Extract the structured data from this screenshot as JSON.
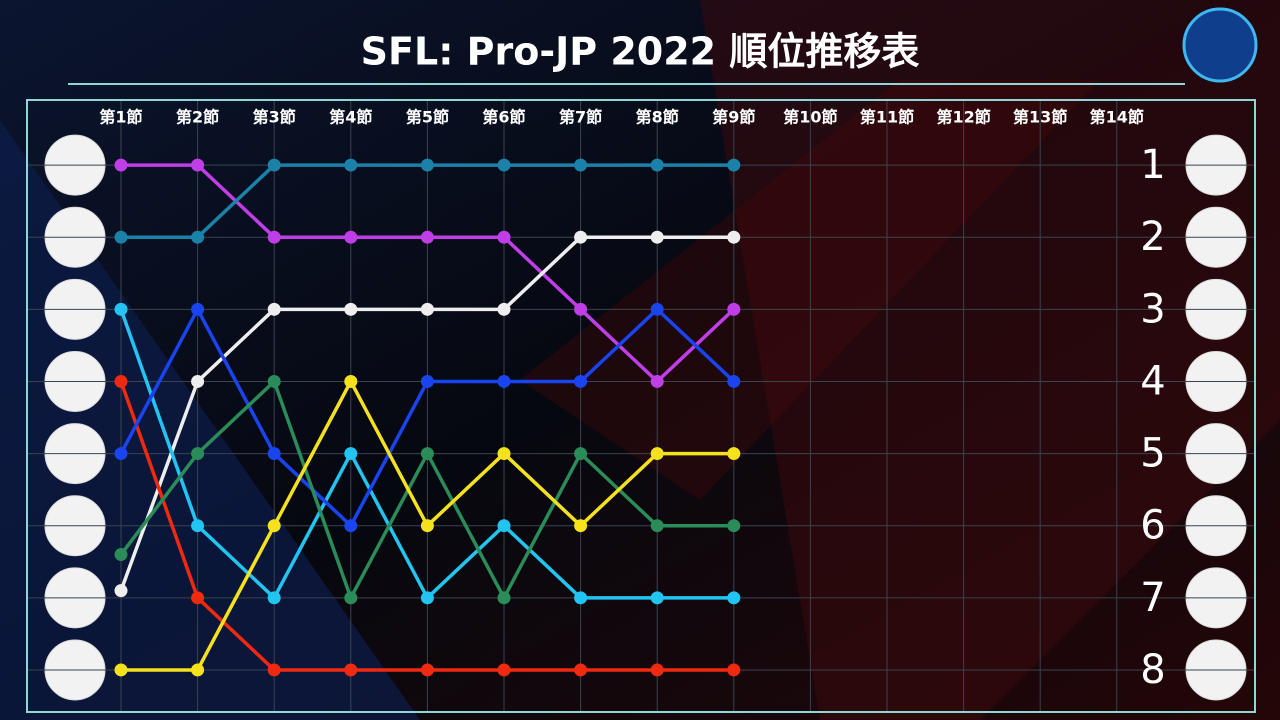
{
  "chart_data": {
    "type": "line",
    "title": "SFL: Pro-JP 2022  順位推移表",
    "categories": [
      "第1節",
      "第2節",
      "第3節",
      "第4節",
      "第5節",
      "第6節",
      "第7節",
      "第8節",
      "第9節",
      "第10節",
      "第11節",
      "第12節",
      "第13節",
      "第14節"
    ],
    "series": [
      {
        "color": "#c03ee8",
        "values": [
          1,
          1,
          2,
          2,
          2,
          2,
          3,
          4,
          3,
          null,
          null,
          null,
          null,
          null
        ]
      },
      {
        "color": "#1a82a8",
        "values": [
          2,
          2,
          1,
          1,
          1,
          1,
          1,
          1,
          1,
          null,
          null,
          null,
          null,
          null
        ]
      },
      {
        "color": "#eeeeee",
        "values": [
          6.9,
          4,
          3,
          3,
          3,
          3,
          2,
          2,
          2,
          null,
          null,
          null,
          null,
          null
        ]
      },
      {
        "color": "#22c4f2",
        "values": [
          3,
          6,
          7,
          5,
          7,
          6,
          7,
          7,
          7,
          null,
          null,
          null,
          null,
          null
        ]
      },
      {
        "color": "#f02a10",
        "values": [
          4,
          7,
          8,
          8,
          8,
          8,
          8,
          8,
          8,
          null,
          null,
          null,
          null,
          null
        ]
      },
      {
        "color": "#1a44f0",
        "values": [
          5,
          3,
          5,
          6,
          4,
          4,
          4,
          3,
          4,
          null,
          null,
          null,
          null,
          null
        ]
      },
      {
        "color": "#2a8c58",
        "values": [
          6.4,
          5,
          4,
          7,
          5,
          7,
          5,
          6,
          6,
          null,
          null,
          null,
          null,
          null
        ]
      },
      {
        "color": "#f5e21c",
        "values": [
          8,
          8,
          6,
          4,
          6,
          5,
          6,
          5,
          5,
          null,
          null,
          null,
          null,
          null
        ]
      }
    ],
    "ylim": [
      8.5,
      0.5
    ],
    "yticks": [
      1,
      2,
      3,
      4,
      5,
      6,
      7,
      8
    ],
    "grid": true
  }
}
